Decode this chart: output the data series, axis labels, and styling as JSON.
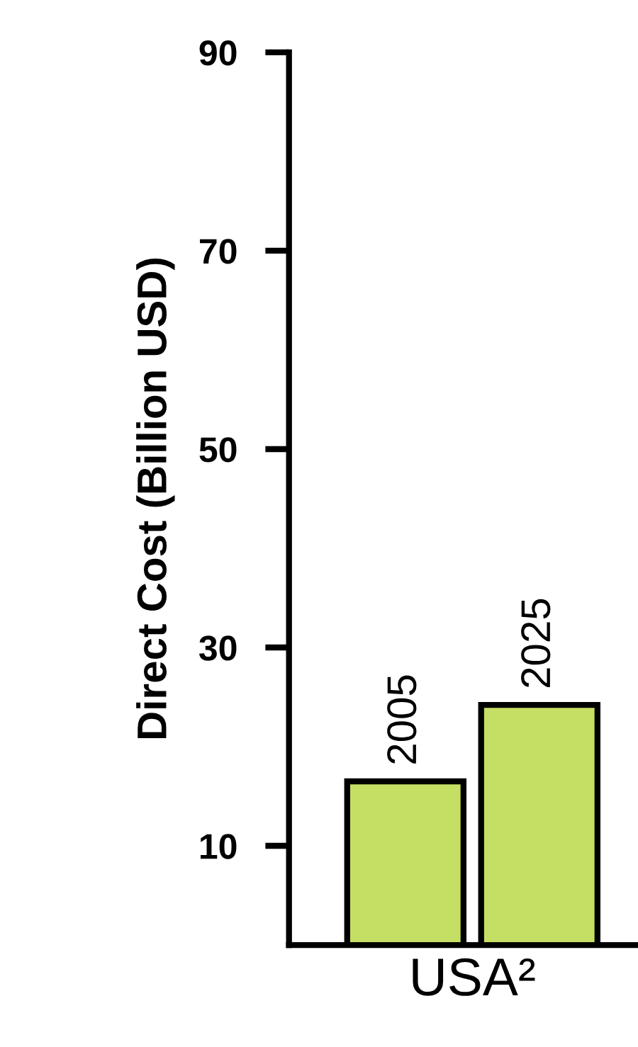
{
  "chart_data": {
    "type": "bar",
    "ylabel": "Direct Cost (Billion USD)",
    "categories": [
      "USA²"
    ],
    "series": [
      {
        "name": "2005",
        "color": "#c5df64",
        "values": [
          16.5
        ]
      },
      {
        "name": "2025",
        "color": "#c5df64",
        "values": [
          24.2
        ]
      }
    ],
    "ylim": [
      0,
      90
    ],
    "yticks": [
      10,
      30,
      50,
      70,
      90
    ],
    "grid": false,
    "legend": false
  }
}
